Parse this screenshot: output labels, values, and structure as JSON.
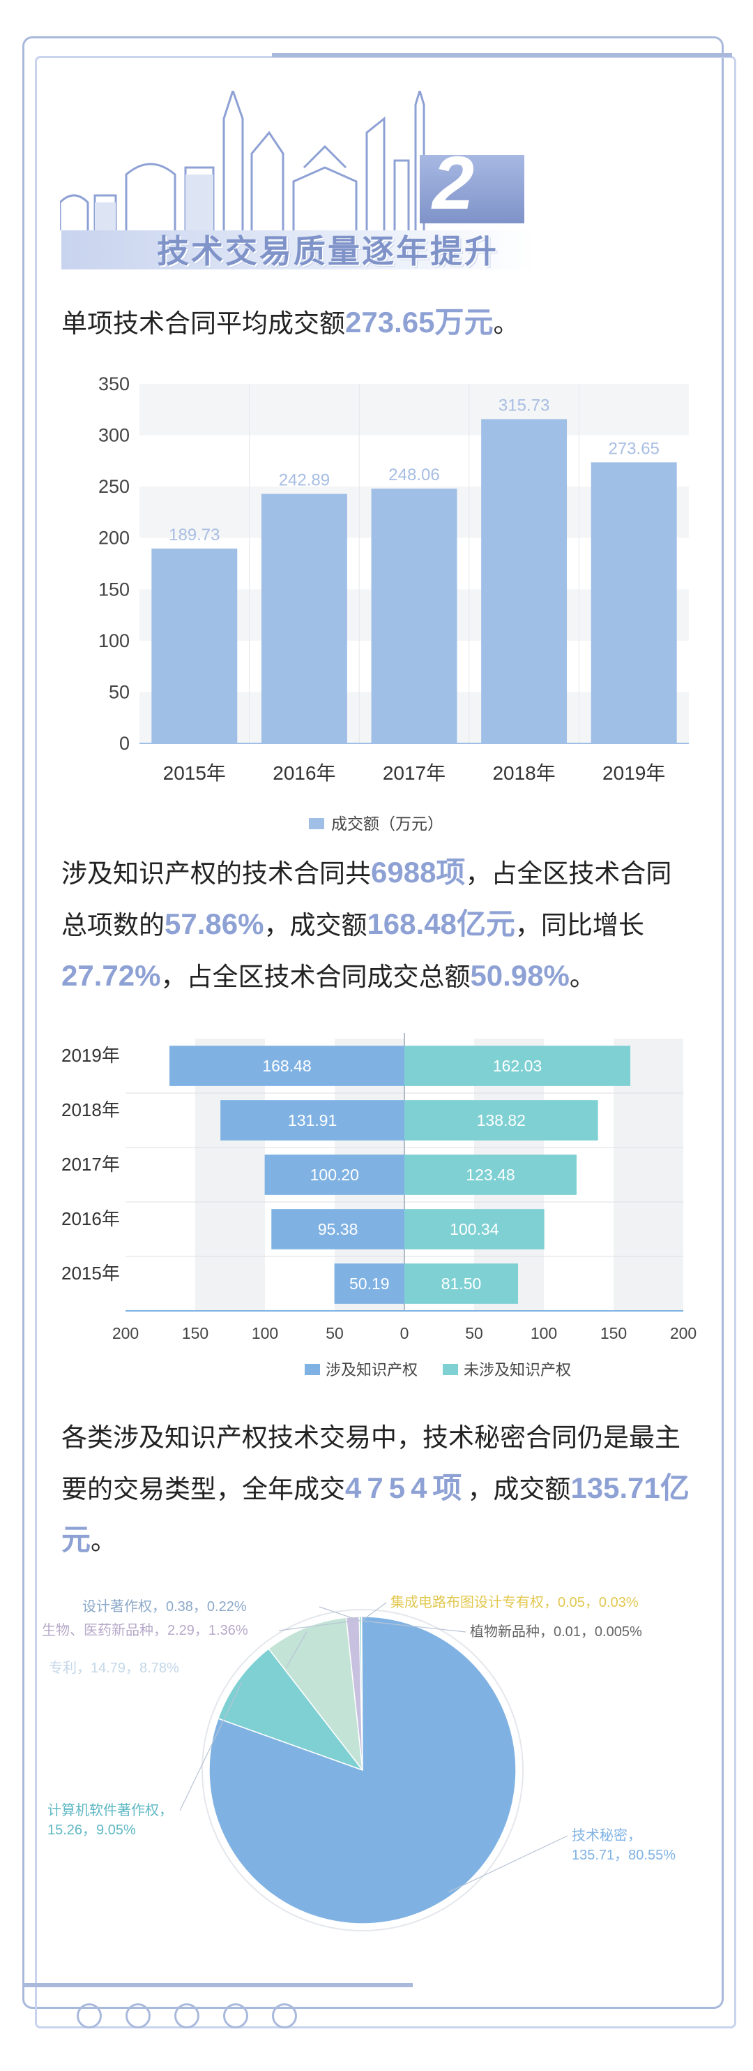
{
  "header": {
    "number": "2",
    "title": "技术交易质量逐年提升"
  },
  "para1": {
    "pre": "单项技术合同平均成交额",
    "h1": "273.65万元",
    "post": "。"
  },
  "para2": {
    "t1": "涉及知识产权的技术合同共",
    "h1": "6988项",
    "t2": "，占全区技术合同总项数的",
    "h2": "57.86%",
    "t3": "，成交额",
    "h3": "168.48亿元",
    "t4": "，同比增长",
    "h4": "27.72%",
    "t5": "，占全区技术合同成交总额",
    "h5": "50.98%",
    "t6": "。"
  },
  "para3": {
    "t1": "各类涉及知识产权技术交易中，技术秘密合同仍是最主要的交易类型，全年成交",
    "h1": "4754项",
    "t2": "，成交额",
    "h2": "135.71亿元",
    "t3": "。"
  },
  "colors": {
    "accent": "#8ea1d4",
    "bar": "#9fbfe6",
    "ip": "#7fb2e3",
    "nonip": "#7fd0d3",
    "frame": "#a9b9dc"
  },
  "chart_data": [
    {
      "type": "bar",
      "categories": [
        "2015年",
        "2016年",
        "2017年",
        "2018年",
        "2019年"
      ],
      "values": [
        189.73,
        242.89,
        248.06,
        315.73,
        273.65
      ],
      "yticks": [
        "0",
        "50",
        "100",
        "150",
        "200",
        "250",
        "300",
        "350"
      ],
      "ylim": [
        0,
        350
      ],
      "legend": "成交额（万元）",
      "legend_position": "bottom",
      "grid": false
    },
    {
      "type": "bar",
      "orientation": "horizontal-diverging",
      "categories": [
        "2019年",
        "2018年",
        "2017年",
        "2016年",
        "2015年"
      ],
      "series": [
        {
          "name": "涉及知识产权",
          "values": [
            168.48,
            131.91,
            100.2,
            95.38,
            50.19
          ]
        },
        {
          "name": "未涉及知识产权",
          "values": [
            162.03,
            138.82,
            123.48,
            100.34,
            81.5
          ]
        }
      ],
      "labels_left": [
        "168.48",
        "131.91",
        "100.20",
        "95.38",
        "50.19"
      ],
      "labels_right": [
        "162.03",
        "138.82",
        "123.48",
        "100.34",
        "81.50"
      ],
      "xticks": [
        "200",
        "150",
        "100",
        "50",
        "0",
        "50",
        "100",
        "150",
        "200"
      ],
      "xlim": [
        -200,
        200
      ],
      "legend_position": "bottom"
    },
    {
      "type": "pie",
      "slices": [
        {
          "name": "技术秘密",
          "value": 135.71,
          "pct": "80.55%",
          "label1": "技术秘密，",
          "label2": "135.71，80.55%",
          "color": "#7fb2e3"
        },
        {
          "name": "计算机软件著作权",
          "value": 15.26,
          "pct": "9.05%",
          "label1": "计算机软件著作权，",
          "label2": "15.26，9.05%",
          "color": "#7fd0d3"
        },
        {
          "name": "专利",
          "value": 14.79,
          "pct": "8.78%",
          "label1": "专利，14.79，8.78%",
          "label2": "",
          "color": "#c3e3d6"
        },
        {
          "name": "生物、医药新品种",
          "value": 2.29,
          "pct": "1.36%",
          "label1": "生物、医药新品种，2.29，1.36%",
          "label2": "",
          "color": "#c7c0de"
        },
        {
          "name": "设计著作权",
          "value": 0.38,
          "pct": "0.22%",
          "label1": "设计著作权，0.38，0.22%",
          "label2": "",
          "color": "#8fd3d0"
        },
        {
          "name": "集成电路布图设计专有权",
          "value": 0.05,
          "pct": "0.03%",
          "label1": "集成电路布图设计专有权，0.05，0.03%",
          "label2": "",
          "color": "#f0dc6a"
        },
        {
          "name": "植物新品种",
          "value": 0.01,
          "pct": "0.005%",
          "label1": "植物新品种，0.01，0.005%",
          "label2": "",
          "color": "#777777"
        }
      ]
    }
  ]
}
